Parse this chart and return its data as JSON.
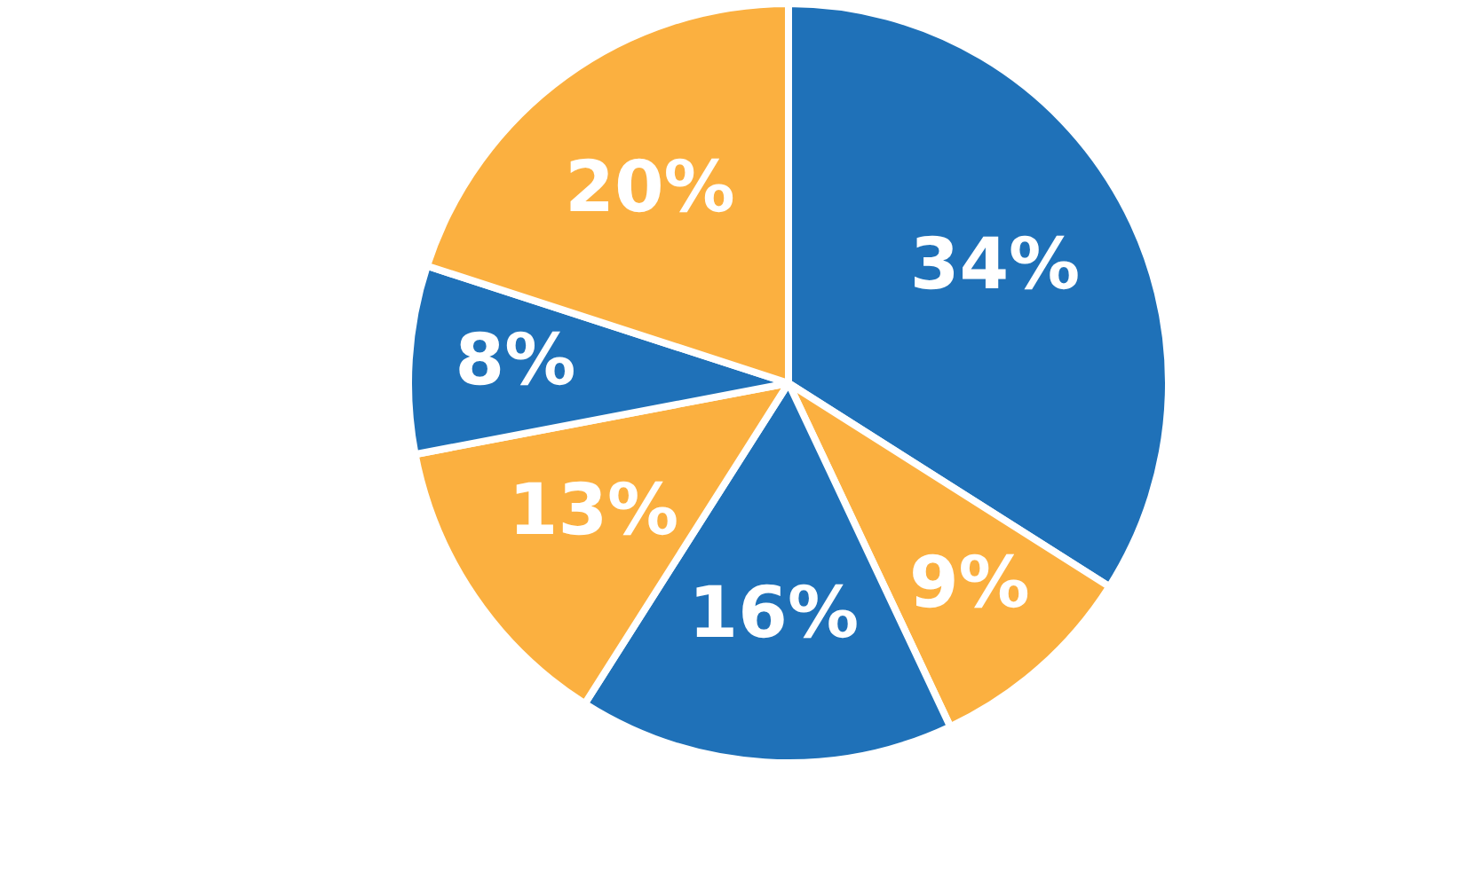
{
  "chart_data": {
    "type": "pie",
    "categories": [
      null,
      null,
      null,
      null,
      null,
      null
    ],
    "values": [
      34,
      9,
      16,
      13,
      8,
      20
    ],
    "colors": [
      "#1f71b8",
      "#fbb040",
      "#1f71b8",
      "#fbb040",
      "#1f71b8",
      "#fbb040"
    ],
    "value_labels": [
      "34%",
      "9%",
      "16%",
      "13%",
      "8%",
      "20%"
    ],
    "legend": false
  }
}
